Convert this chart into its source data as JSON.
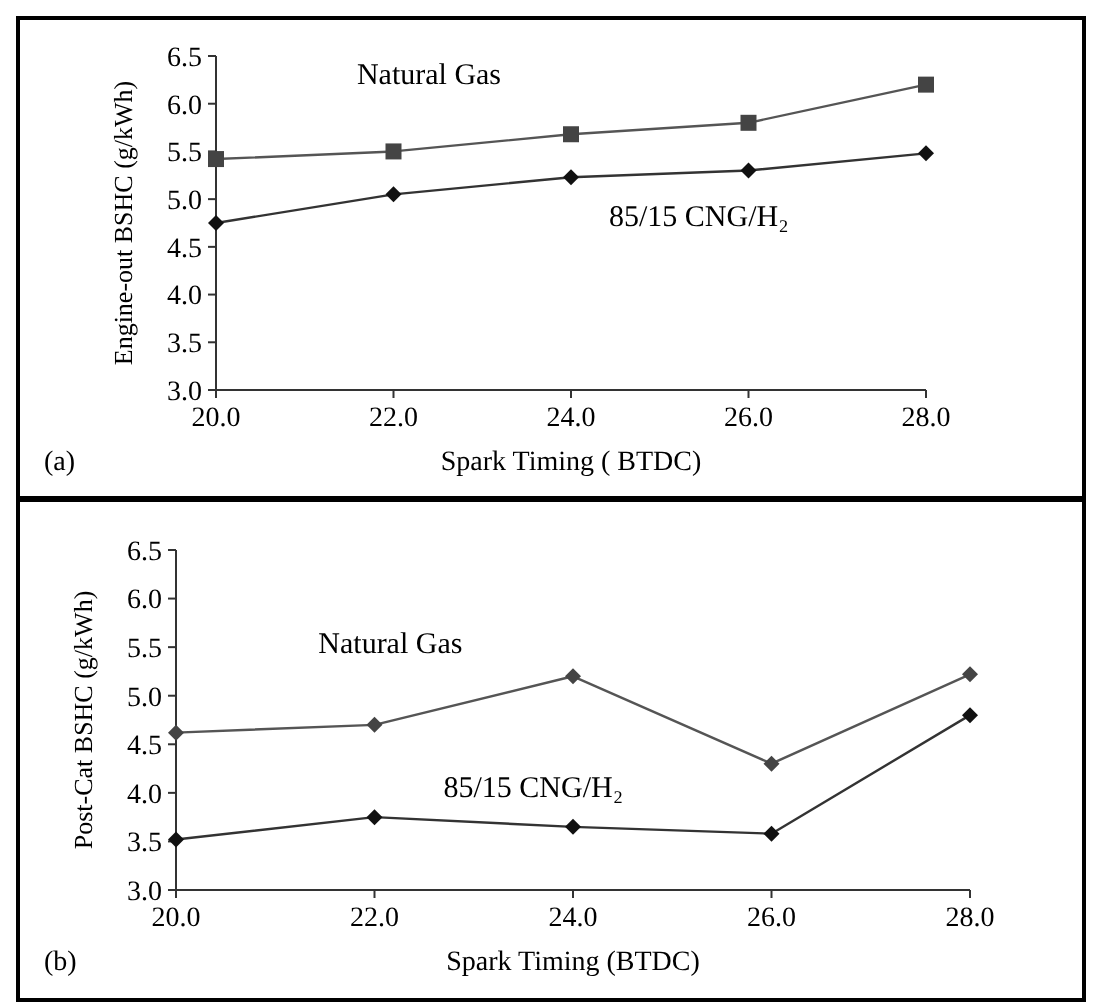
{
  "chart_data": [
    {
      "type": "line",
      "xlabel": "Spark Timing ( BTDC)",
      "ylabel": "Engine-out BSHC (g/kWh)",
      "x": [
        20,
        22,
        24,
        26,
        28
      ],
      "xlim": [
        20,
        28
      ],
      "xticks": [
        {
          "value": 20,
          "label": "20.0"
        },
        {
          "value": 22,
          "label": "22.0"
        },
        {
          "value": 24,
          "label": "24.0"
        },
        {
          "value": 26,
          "label": "26.0"
        },
        {
          "value": 28,
          "label": "28.0"
        }
      ],
      "ylim": [
        3,
        6.5
      ],
      "yticks": [
        {
          "value": 3,
          "label": "3.0"
        },
        {
          "value": 3.5,
          "label": "3.5"
        },
        {
          "value": 4,
          "label": "4.0"
        },
        {
          "value": 4.5,
          "label": "4.5"
        },
        {
          "value": 5,
          "label": "5.0"
        },
        {
          "value": 5.5,
          "label": "5.5"
        },
        {
          "value": 6,
          "label": "6.0"
        },
        {
          "value": 6.5,
          "label": "6.5"
        }
      ],
      "grid": false,
      "annotations": [
        "(a)"
      ],
      "series": [
        {
          "name": "Natural Gas",
          "color": "#555555",
          "marker": "square",
          "values": [
            5.42,
            5.5,
            5.68,
            5.8,
            6.2
          ]
        },
        {
          "name": "85/15  CNG/H₂",
          "color": "#333333",
          "marker": "diamond",
          "values": [
            4.75,
            5.05,
            5.23,
            5.3,
            5.48
          ]
        }
      ]
    },
    {
      "type": "line",
      "xlabel": "Spark Timing (BTDC)",
      "ylabel": "Post-Cat BSHC (g/kWh)",
      "x": [
        20,
        22,
        24,
        26,
        28
      ],
      "xlim": [
        20,
        28
      ],
      "xticks": [
        {
          "value": 20,
          "label": "20.0"
        },
        {
          "value": 22,
          "label": "22.0"
        },
        {
          "value": 24,
          "label": "24.0"
        },
        {
          "value": 26,
          "label": "26.0"
        },
        {
          "value": 28,
          "label": "28.0"
        }
      ],
      "ylim": [
        3,
        6.5
      ],
      "yticks": [
        {
          "value": 3,
          "label": "3.0"
        },
        {
          "value": 3.5,
          "label": "3.5"
        },
        {
          "value": 4,
          "label": "4.0"
        },
        {
          "value": 4.5,
          "label": "4.5"
        },
        {
          "value": 5,
          "label": "5.0"
        },
        {
          "value": 5.5,
          "label": "5.5"
        },
        {
          "value": 6,
          "label": "6.0"
        },
        {
          "value": 6.5,
          "label": "6.5"
        }
      ],
      "grid": false,
      "annotations": [
        "(b)"
      ],
      "series": [
        {
          "name": "Natural Gas",
          "color": "#555555",
          "marker": "diamond",
          "values": [
            4.62,
            4.7,
            5.2,
            4.3,
            5.22
          ]
        },
        {
          "name": "85/15  CNG/H₂",
          "color": "#333333",
          "marker": "diamond",
          "values": [
            3.52,
            3.75,
            3.65,
            3.58,
            4.8
          ]
        }
      ]
    }
  ]
}
